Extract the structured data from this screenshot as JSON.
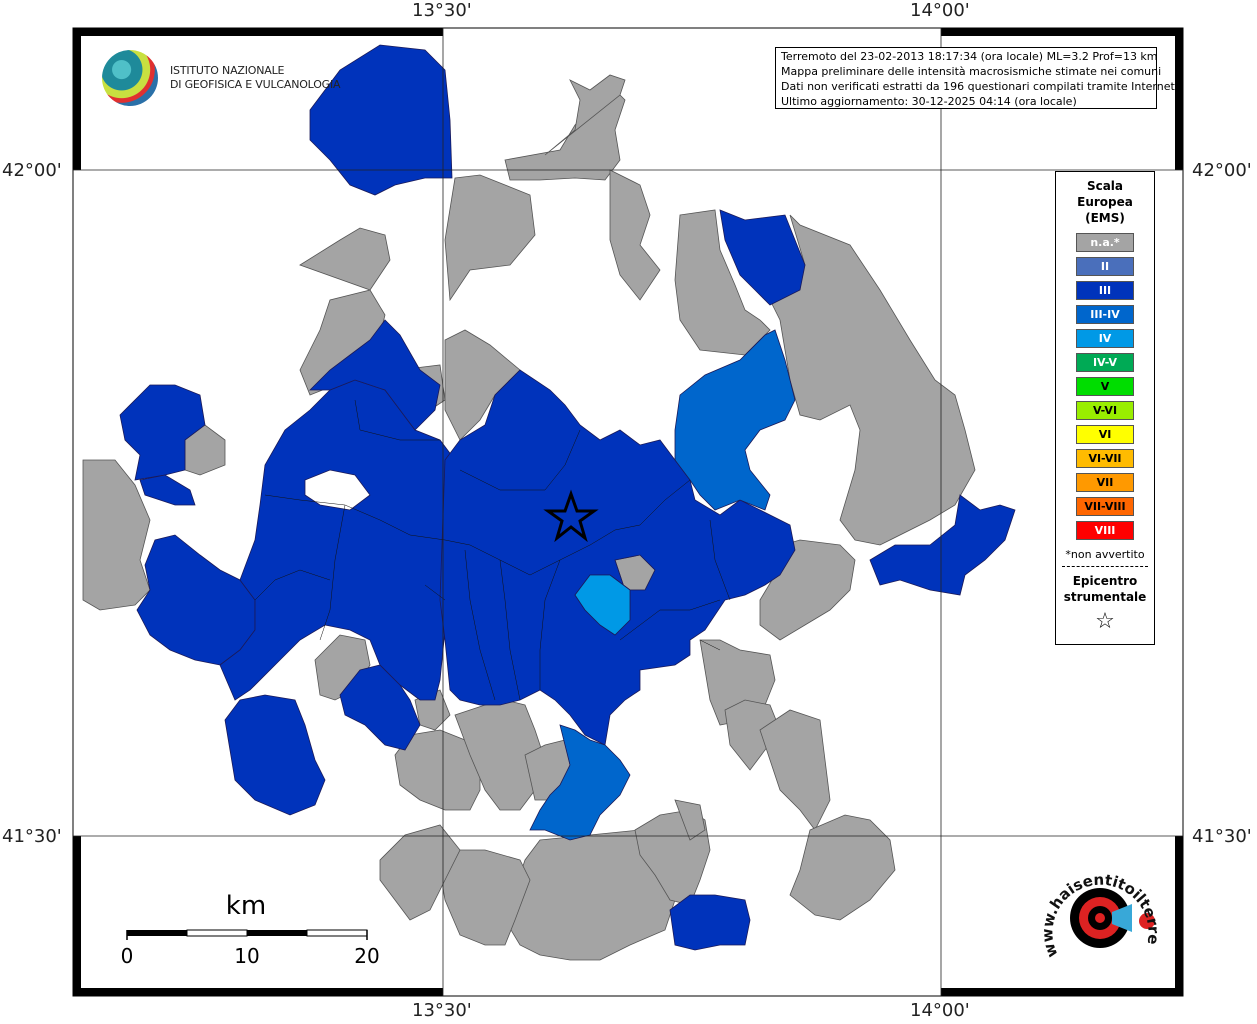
{
  "map": {
    "ticks": {
      "top": [
        "13°30'",
        "14°00'"
      ],
      "bottom": [
        "13°30'",
        "14°00'"
      ],
      "left": [
        "42°00'",
        "41°30'"
      ],
      "right": [
        "42°00'",
        "41°30'"
      ]
    },
    "colors": {
      "na": "#a4a4a4",
      "III": "#0033bb",
      "III-IV": "#0066cc",
      "IV": "#0099e6"
    }
  },
  "info": {
    "line1": "Terremoto del 23-02-2013 18:17:34 (ora locale) ML=3.2 Prof=13 km",
    "line2": "Mappa preliminare delle intensità macrosismiche stimate nei comuni",
    "line3": "Dati non verificati estratti da 196 questionari compilati tramite Internet.",
    "line4": "Ultimo aggiornamento: 30-12-2025 04:14 (ora locale)"
  },
  "legend": {
    "title1": "Scala",
    "title2": "Europea",
    "title3": "(EMS)",
    "items": [
      {
        "label": "n.a.*",
        "color": "#a4a4a4",
        "text": "#ffffff"
      },
      {
        "label": "II",
        "color": "#4a6fbb",
        "text": "#ffffff"
      },
      {
        "label": "III",
        "color": "#0033bb",
        "text": "#ffffff"
      },
      {
        "label": "III-IV",
        "color": "#0066cc",
        "text": "#ffffff"
      },
      {
        "label": "IV",
        "color": "#0099e6",
        "text": "#ffffff"
      },
      {
        "label": "IV-V",
        "color": "#00aa55",
        "text": "#ffffff"
      },
      {
        "label": "V",
        "color": "#00dd00",
        "text": "#000000"
      },
      {
        "label": "V-VI",
        "color": "#99ee00",
        "text": "#000000"
      },
      {
        "label": "VI",
        "color": "#ffff00",
        "text": "#000000"
      },
      {
        "label": "VI-VII",
        "color": "#ffbb00",
        "text": "#000000"
      },
      {
        "label": "VII",
        "color": "#ff9900",
        "text": "#000000"
      },
      {
        "label": "VII-VIII",
        "color": "#ff6600",
        "text": "#000000"
      },
      {
        "label": "VIII",
        "color": "#ff0000",
        "text": "#ffffff"
      }
    ],
    "note": "*non avvertito",
    "epicentro1": "Epicentro",
    "epicentro2": "strumentale"
  },
  "scale": {
    "unit": "km",
    "labels": [
      "0",
      "10",
      "20"
    ]
  },
  "logo": {
    "line1": "ISTITUTO NAZIONALE",
    "line2": "DI GEOFISICA E VULCANOLOGIA"
  },
  "hst": {
    "text": "www.haisentitoilterremoto.it"
  }
}
